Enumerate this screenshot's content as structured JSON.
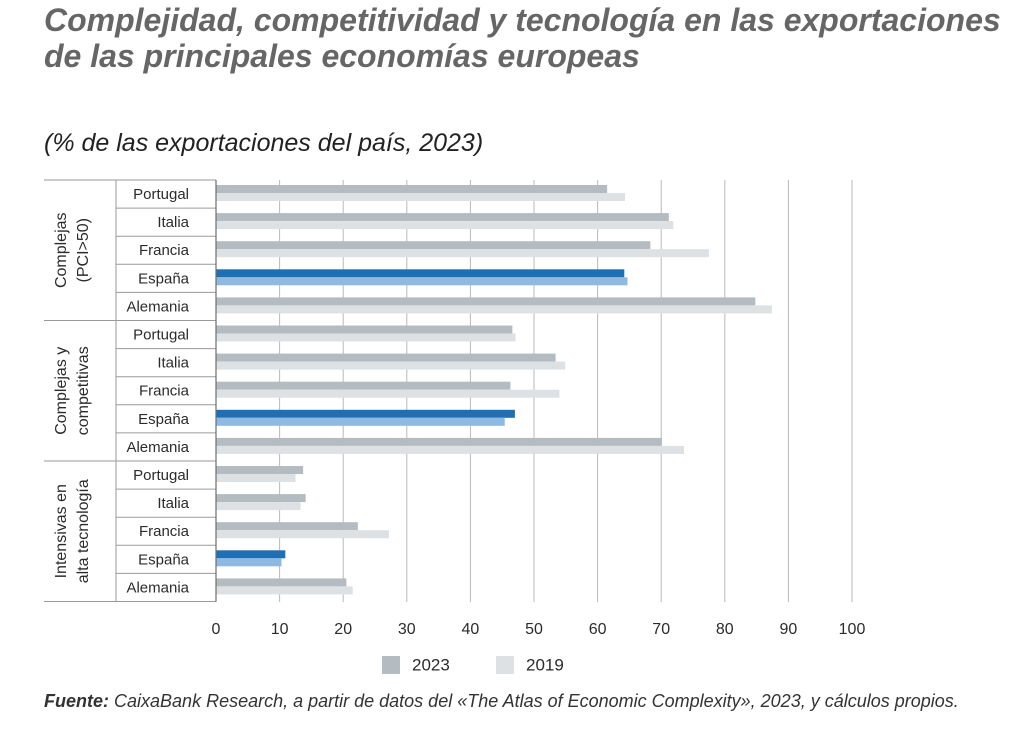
{
  "title": "Complejidad, competitividad y tecnología en las exportaciones de las principales economías europeas",
  "subtitle": "(% de las exportaciones del país, 2023)",
  "source": {
    "label": "Fuente:",
    "text": "CaixaBank Research, a partir de datos del «The Atlas of Economic Complexity», 2023, y cálculos propios."
  },
  "chart_data": {
    "type": "bar",
    "orientation": "horizontal",
    "xlim": [
      0,
      100
    ],
    "xticks": [
      "0",
      "10",
      "20",
      "30",
      "40",
      "50",
      "60",
      "70",
      "80",
      "90",
      "100"
    ],
    "grid": true,
    "legend_position": "bottom",
    "series": [
      {
        "name": "2023",
        "color": "#b4bcc1",
        "highlight_color": "#1f6fb5"
      },
      {
        "name": "2019",
        "color": "#dde1e4",
        "highlight_color": "#8fb9e1"
      }
    ],
    "highlight_category": "España",
    "groups": [
      {
        "label_lines": [
          "Complejas",
          "(PCI>50)"
        ],
        "categories": [
          {
            "name": "Portugal",
            "values": [
              61.5,
              64.3
            ]
          },
          {
            "name": "Italia",
            "values": [
              71.2,
              71.9
            ]
          },
          {
            "name": "Francia",
            "values": [
              68.3,
              77.5
            ]
          },
          {
            "name": "España",
            "values": [
              64.2,
              64.7
            ]
          },
          {
            "name": "Alemania",
            "values": [
              84.8,
              87.4
            ]
          }
        ]
      },
      {
        "label_lines": [
          "Complejas y",
          "competitivas"
        ],
        "categories": [
          {
            "name": "Portugal",
            "values": [
              46.6,
              47.1
            ]
          },
          {
            "name": "Italia",
            "values": [
              53.4,
              54.9
            ]
          },
          {
            "name": "Francia",
            "values": [
              46.3,
              54.0
            ]
          },
          {
            "name": "España",
            "values": [
              47.0,
              45.4
            ]
          },
          {
            "name": "Alemania",
            "values": [
              70.1,
              73.6
            ]
          }
        ]
      },
      {
        "label_lines": [
          "Intensivas en",
          "alta tecnología"
        ],
        "categories": [
          {
            "name": "Portugal",
            "values": [
              13.7,
              12.5
            ]
          },
          {
            "name": "Italia",
            "values": [
              14.1,
              13.3
            ]
          },
          {
            "name": "Francia",
            "values": [
              22.3,
              27.2
            ]
          },
          {
            "name": "España",
            "values": [
              10.9,
              10.3
            ]
          },
          {
            "name": "Alemania",
            "values": [
              20.5,
              21.5
            ]
          }
        ]
      }
    ]
  }
}
